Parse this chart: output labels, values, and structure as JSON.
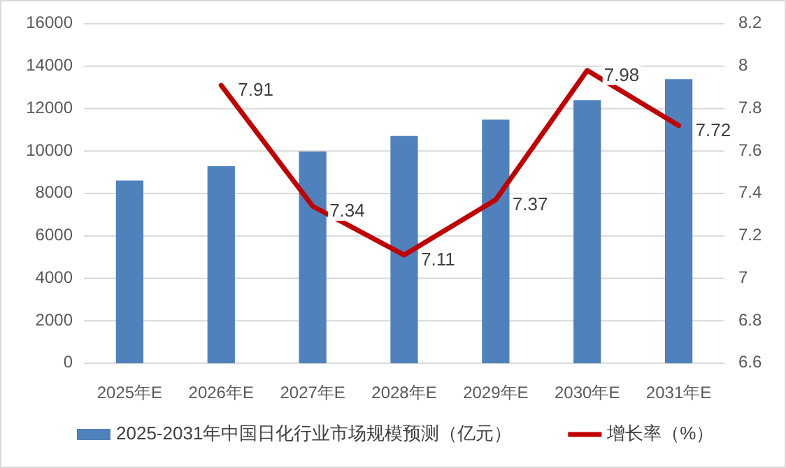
{
  "chart_data": {
    "type": "bar",
    "categories": [
      "2025年E",
      "2026年E",
      "2027年E",
      "2028年E",
      "2029年E",
      "2030年E",
      "2031年E"
    ],
    "series": [
      {
        "name": "2025-2031年中国日化行业市场规模预测（亿元）",
        "color": "#4f81bd",
        "values": [
          8610,
          9290,
          9980,
          10710,
          11480,
          12400,
          13390
        ]
      },
      {
        "name": "增长率（%）",
        "type": "line",
        "axis": "y2",
        "color": "#c00000",
        "values": [
          null,
          7.91,
          7.34,
          7.11,
          7.37,
          7.98,
          7.72
        ],
        "value_labels": [
          null,
          "7.91",
          "7.34",
          "7.11",
          "7.37",
          "7.98",
          "7.72"
        ]
      }
    ],
    "ylim": [
      0,
      16000
    ],
    "yticks": [
      0,
      2000,
      4000,
      6000,
      8000,
      10000,
      12000,
      14000,
      16000
    ],
    "y2lim": [
      6.6,
      8.2
    ],
    "y2ticks": [
      {
        "value": 6.6,
        "label": "6.6"
      },
      {
        "value": 6.8,
        "label": "6.8"
      },
      7,
      {
        "value": 7.2,
        "label": "7.2"
      },
      {
        "value": 7.4,
        "label": "7.4"
      },
      {
        "value": 7.6,
        "label": "7.6"
      },
      {
        "value": 7.8,
        "label": "7.8"
      },
      8,
      {
        "value": 8.2,
        "label": "8.2"
      }
    ],
    "grid": "y",
    "legend": "bottom",
    "marker": "none",
    "line_style": "solid"
  }
}
